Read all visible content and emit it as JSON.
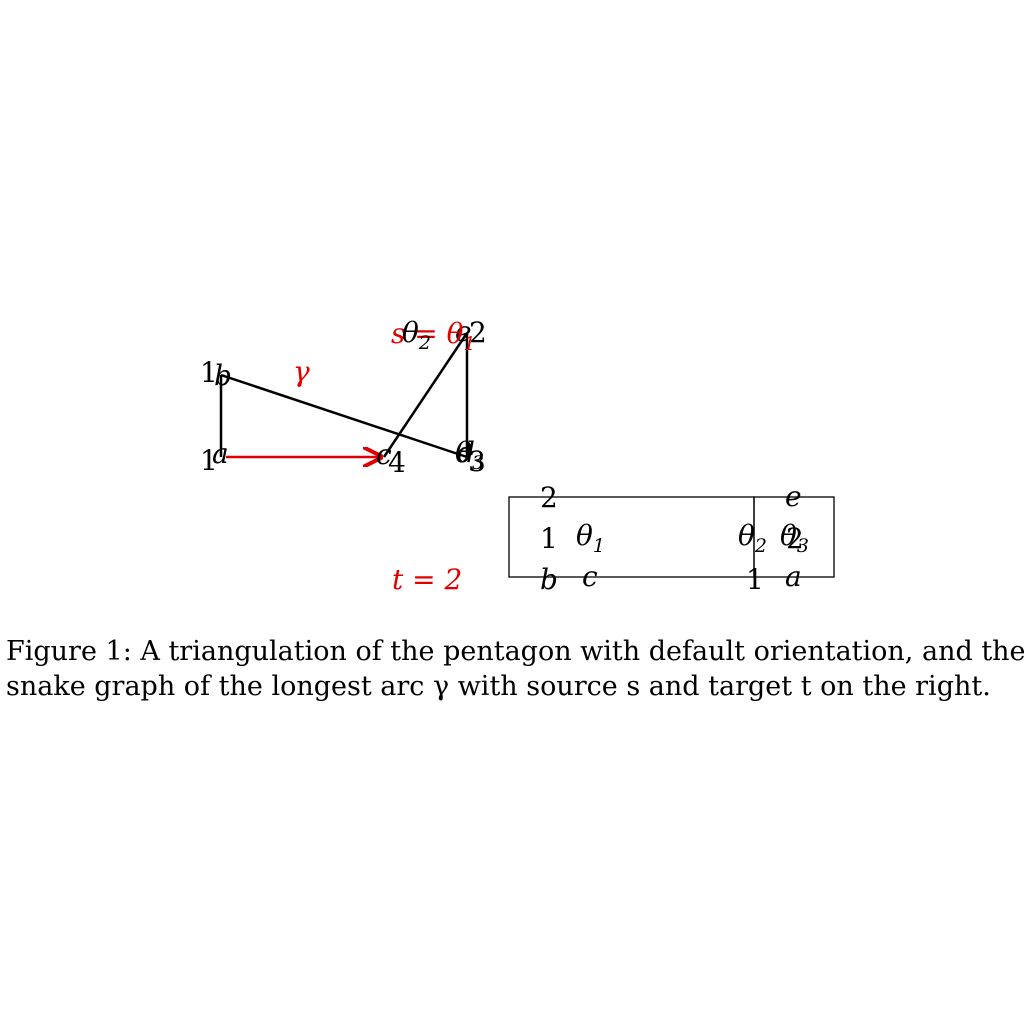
{
  "colors": {
    "ink": "#000000",
    "accent": "#e00000"
  },
  "triangulation": {
    "vertex_numbers": {
      "top_left": "1",
      "bottom_left": "1",
      "bottom_mid": "4",
      "bottom_right": "3",
      "top_right": "2"
    },
    "edge_letters": {
      "a": "a",
      "b": "b",
      "c": "c",
      "d": "d",
      "e": "e"
    },
    "arc_label": "γ",
    "source_label": "s = θ",
    "source_sub": "1",
    "theta": "θ",
    "theta_subs": {
      "one": "1",
      "two": "2",
      "three": "3"
    },
    "target_label": "t = 2"
  },
  "snake_graph": {
    "labels": {
      "top_left": "2",
      "mid_left": "1",
      "bottom_left_b": "b",
      "bottom_c": "c",
      "bottom_mid": "1",
      "bottom_right_a": "a",
      "top_right_e": "e",
      "mid_right": "2"
    }
  },
  "caption": {
    "line1": "Figure 1: A triangulation of the pentagon with default orientation, and the",
    "line2": "snake graph of the longest arc γ with source s and target t on the right."
  }
}
